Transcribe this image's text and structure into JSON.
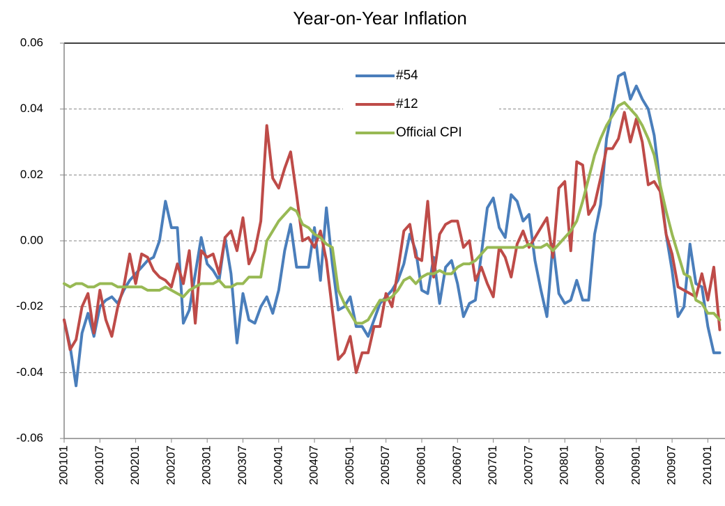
{
  "chart_data": {
    "type": "line",
    "title": "Year-on-Year  Inflation",
    "categories": [
      "200101",
      null,
      null,
      null,
      null,
      null,
      "200107",
      null,
      null,
      null,
      null,
      null,
      "200201",
      null,
      null,
      null,
      null,
      null,
      "200207",
      null,
      null,
      null,
      null,
      null,
      "200301",
      null,
      null,
      null,
      null,
      null,
      "200307",
      null,
      null,
      null,
      null,
      null,
      "200401",
      null,
      null,
      null,
      null,
      null,
      "200407",
      null,
      null,
      null,
      null,
      null,
      "200501",
      null,
      null,
      null,
      null,
      null,
      "200507",
      null,
      null,
      null,
      null,
      null,
      "200601",
      null,
      null,
      null,
      null,
      null,
      "200607",
      null,
      null,
      null,
      null,
      null,
      "200701",
      null,
      null,
      null,
      null,
      null,
      "200707",
      null,
      null,
      null,
      null,
      null,
      "200801",
      null,
      null,
      null,
      null,
      null,
      "200807",
      null,
      null,
      null,
      null,
      null,
      "200901",
      null,
      null,
      null,
      null,
      null,
      "200907",
      null,
      null,
      null,
      null,
      null,
      "201001",
      null,
      null
    ],
    "series": [
      {
        "name": "#54",
        "color": "#4a7ebb",
        "values": [
          -0.024,
          -0.032,
          -0.044,
          -0.028,
          -0.022,
          -0.029,
          -0.02,
          -0.018,
          -0.017,
          -0.019,
          -0.015,
          -0.012,
          -0.01,
          -0.008,
          -0.006,
          -0.005,
          0.0,
          0.012,
          0.004,
          0.004,
          -0.025,
          -0.021,
          -0.01,
          0.001,
          -0.007,
          -0.009,
          -0.012,
          0.001,
          -0.01,
          -0.031,
          -0.016,
          -0.024,
          -0.025,
          -0.02,
          -0.017,
          -0.022,
          -0.015,
          -0.003,
          0.005,
          -0.008,
          -0.008,
          -0.008,
          0.004,
          -0.012,
          0.01,
          -0.007,
          -0.021,
          -0.02,
          -0.017,
          -0.026,
          -0.026,
          -0.029,
          -0.024,
          -0.019,
          -0.017,
          -0.015,
          -0.012,
          -0.007,
          0.002,
          -0.003,
          -0.015,
          -0.016,
          -0.005,
          -0.019,
          -0.008,
          -0.006,
          -0.013,
          -0.023,
          -0.019,
          -0.018,
          -0.004,
          0.01,
          0.013,
          0.004,
          0.001,
          0.014,
          0.012,
          0.006,
          0.008,
          -0.006,
          -0.015,
          -0.023,
          -0.001,
          -0.016,
          -0.019,
          -0.018,
          -0.012,
          -0.018,
          -0.018,
          0.002,
          0.011,
          0.031,
          0.04,
          0.05,
          0.051,
          0.043,
          0.047,
          0.043,
          0.04,
          0.032,
          0.017,
          0.002,
          -0.009,
          -0.023,
          -0.02,
          -0.001,
          -0.013,
          -0.014,
          -0.026,
          -0.034,
          -0.034
        ]
      },
      {
        "name": "#12",
        "color": "#be4b48",
        "values": [
          -0.024,
          -0.033,
          -0.03,
          -0.02,
          -0.016,
          -0.028,
          -0.015,
          -0.024,
          -0.029,
          -0.02,
          -0.014,
          -0.004,
          -0.013,
          -0.004,
          -0.005,
          -0.009,
          -0.011,
          -0.012,
          -0.014,
          -0.007,
          -0.013,
          -0.003,
          -0.025,
          -0.003,
          -0.005,
          -0.004,
          -0.01,
          0.001,
          0.003,
          -0.003,
          0.007,
          -0.007,
          -0.003,
          0.006,
          0.035,
          0.019,
          0.016,
          0.022,
          0.027,
          0.014,
          0.0,
          0.001,
          -0.002,
          0.003,
          -0.006,
          -0.021,
          -0.036,
          -0.034,
          -0.029,
          -0.04,
          -0.034,
          -0.034,
          -0.026,
          -0.026,
          -0.016,
          -0.02,
          -0.009,
          0.003,
          0.005,
          -0.005,
          -0.006,
          0.012,
          -0.011,
          0.002,
          0.005,
          0.006,
          0.006,
          -0.002,
          0.0,
          -0.012,
          -0.008,
          -0.013,
          -0.017,
          -0.002,
          -0.005,
          -0.011,
          -0.001,
          0.003,
          -0.002,
          0.001,
          0.004,
          0.007,
          -0.005,
          0.016,
          0.018,
          -0.003,
          0.024,
          0.023,
          0.008,
          0.011,
          0.019,
          0.028,
          0.028,
          0.031,
          0.039,
          0.03,
          0.037,
          0.03,
          0.017,
          0.018,
          0.015,
          0.002,
          -0.004,
          -0.014,
          -0.015,
          -0.016,
          -0.017,
          -0.01,
          -0.018,
          -0.008,
          -0.027
        ]
      },
      {
        "name": "Official CPI",
        "color": "#98b954",
        "values": [
          -0.013,
          -0.014,
          -0.013,
          -0.013,
          -0.014,
          -0.014,
          -0.013,
          -0.013,
          -0.013,
          -0.014,
          -0.014,
          -0.014,
          -0.014,
          -0.014,
          -0.015,
          -0.015,
          -0.015,
          -0.014,
          -0.015,
          -0.016,
          -0.017,
          -0.015,
          -0.014,
          -0.013,
          -0.013,
          -0.013,
          -0.012,
          -0.014,
          -0.014,
          -0.013,
          -0.013,
          -0.011,
          -0.011,
          -0.011,
          0.0,
          0.003,
          0.006,
          0.008,
          0.01,
          0.009,
          0.005,
          0.004,
          0.002,
          0.001,
          -0.001,
          -0.002,
          -0.015,
          -0.019,
          -0.022,
          -0.025,
          -0.025,
          -0.024,
          -0.021,
          -0.018,
          -0.018,
          -0.017,
          -0.015,
          -0.012,
          -0.011,
          -0.013,
          -0.011,
          -0.01,
          -0.01,
          -0.009,
          -0.01,
          -0.01,
          -0.008,
          -0.007,
          -0.007,
          -0.006,
          -0.004,
          -0.002,
          -0.002,
          -0.002,
          -0.002,
          -0.002,
          -0.002,
          -0.002,
          -0.001,
          -0.002,
          -0.002,
          -0.001,
          -0.003,
          -0.001,
          0.001,
          0.003,
          0.006,
          0.012,
          0.019,
          0.026,
          0.031,
          0.035,
          0.038,
          0.041,
          0.042,
          0.04,
          0.038,
          0.035,
          0.031,
          0.026,
          0.017,
          0.009,
          0.002,
          -0.004,
          -0.01,
          -0.011,
          -0.018,
          -0.019,
          -0.022,
          -0.022,
          -0.024
        ]
      }
    ],
    "ylim": [
      -0.06,
      0.06
    ],
    "yticks": [
      -0.06,
      -0.04,
      -0.02,
      {
        "value": 0,
        "label": "0.00"
      },
      0.02,
      0.04,
      0.06
    ],
    "grid": true,
    "legend": "top"
  }
}
